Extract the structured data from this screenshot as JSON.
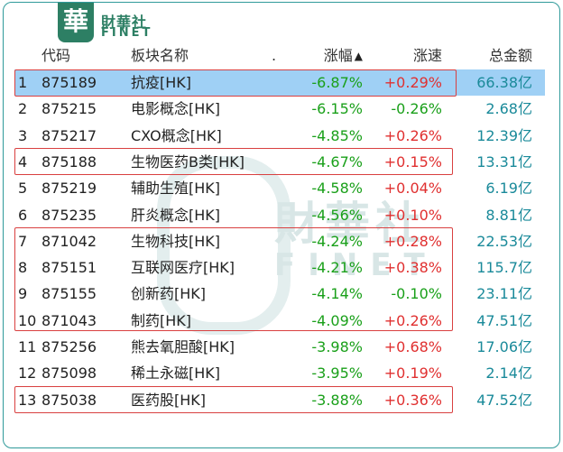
{
  "logo": {
    "badge_char": "華",
    "name_cn": "財華社",
    "name_en": "FINET"
  },
  "watermark": {
    "cn": "財華社",
    "en": "FINET"
  },
  "header": {
    "code": "代码",
    "name": "板块名称",
    "dot": ".",
    "change": "涨幅",
    "speed": "涨速",
    "amount": "总金额",
    "sort_icon": "sort-up-icon"
  },
  "rows": [
    {
      "idx": "1",
      "code": "875189",
      "name": "抗疫[HK]",
      "change": "-6.87%",
      "speed": "+0.29%",
      "amount": "66.38亿"
    },
    {
      "idx": "2",
      "code": "875215",
      "name": "电影概念[HK]",
      "change": "-6.15%",
      "speed": "-0.26%",
      "amount": "2.68亿"
    },
    {
      "idx": "3",
      "code": "875217",
      "name": "CXO概念[HK]",
      "change": "-4.85%",
      "speed": "+0.26%",
      "amount": "12.39亿"
    },
    {
      "idx": "4",
      "code": "875188",
      "name": "生物医药B类[HK]",
      "change": "-4.67%",
      "speed": "+0.15%",
      "amount": "13.31亿"
    },
    {
      "idx": "5",
      "code": "875219",
      "name": "辅助生殖[HK]",
      "change": "-4.58%",
      "speed": "+0.04%",
      "amount": "6.19亿"
    },
    {
      "idx": "6",
      "code": "875235",
      "name": "肝炎概念[HK]",
      "change": "-4.56%",
      "speed": "+0.10%",
      "amount": "8.81亿"
    },
    {
      "idx": "7",
      "code": "871042",
      "name": "生物科技[HK]",
      "change": "-4.24%",
      "speed": "+0.28%",
      "amount": "22.53亿"
    },
    {
      "idx": "8",
      "code": "875151",
      "name": "互联网医疗[HK]",
      "change": "-4.21%",
      "speed": "+0.38%",
      "amount": "115.7亿"
    },
    {
      "idx": "9",
      "code": "875155",
      "name": "创新药[HK]",
      "change": "-4.14%",
      "speed": "-0.10%",
      "amount": "23.11亿"
    },
    {
      "idx": "10",
      "code": "871043",
      "name": "制药[HK]",
      "change": "-4.09%",
      "speed": "+0.26%",
      "amount": "47.51亿"
    },
    {
      "idx": "11",
      "code": "875256",
      "name": "熊去氧胆酸[HK]",
      "change": "-3.98%",
      "speed": "+0.68%",
      "amount": "17.06亿"
    },
    {
      "idx": "12",
      "code": "875098",
      "name": "稀土永磁[HK]",
      "change": "-3.95%",
      "speed": "+0.19%",
      "amount": "2.14亿"
    },
    {
      "idx": "13",
      "code": "875038",
      "name": "医药股[HK]",
      "change": "-3.88%",
      "speed": "+0.36%",
      "amount": "47.52亿"
    }
  ],
  "colors": {
    "negative": "#1aa01a",
    "positive": "#e03030",
    "amount": "#1a8a9a",
    "selected_row": "#9fd0f5",
    "highlight_box": "#d94040",
    "frame": "#2f9a9a"
  }
}
